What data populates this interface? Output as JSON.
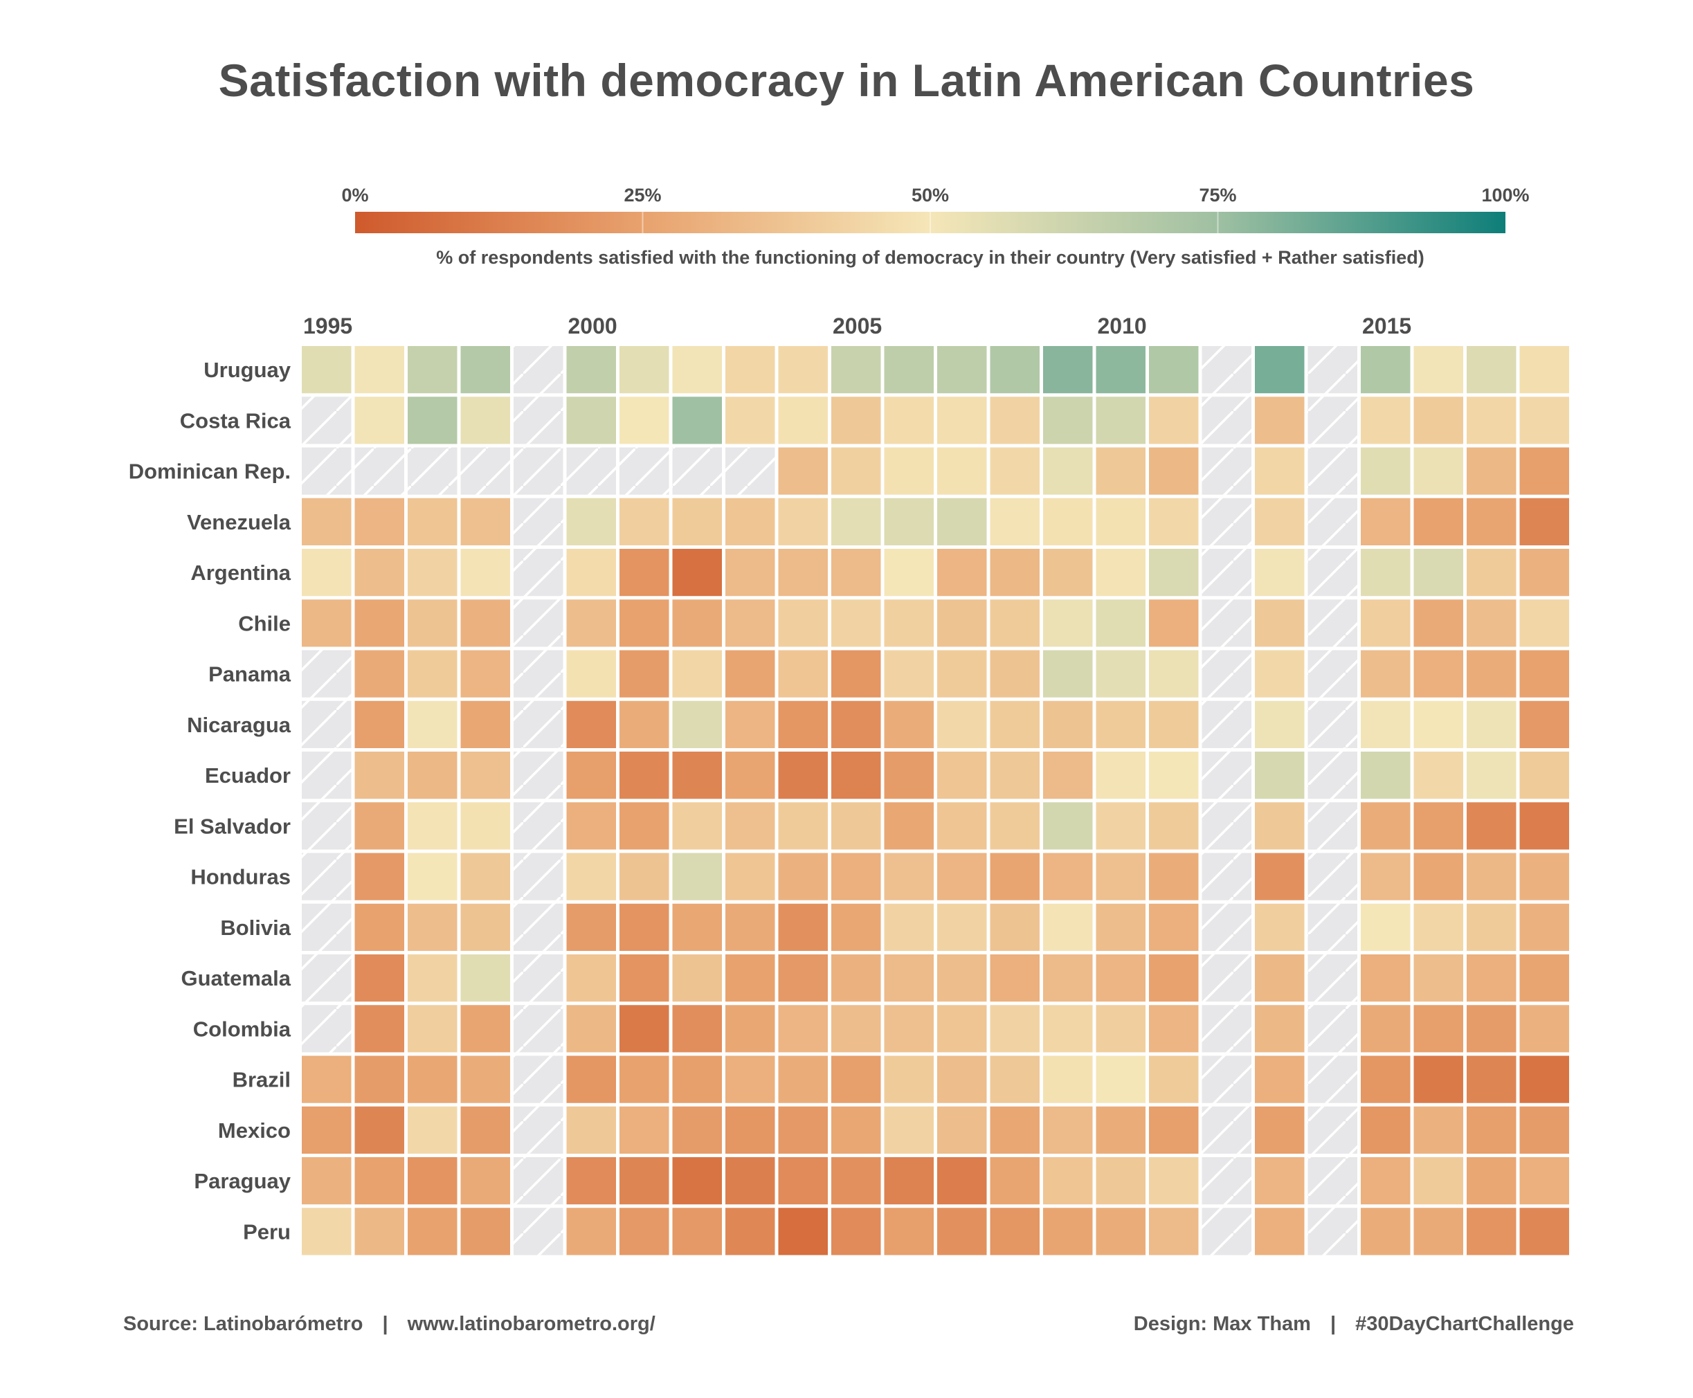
{
  "title": "Satisfaction with democracy in Latin American Countries",
  "colors": {
    "scale": [
      "#cf5a2c",
      "#e8a26e",
      "#f5e6b8",
      "#9fc0a2",
      "#0e7e79"
    ],
    "missing_fill": "#e7e7e9",
    "missing_hatch": "#ffffff",
    "text": "#4d4d4d"
  },
  "footer": {
    "source": "Source: Latinobarómetro",
    "url": "www.latinobarometro.org/",
    "design": "Design: Max Tham",
    "hashtag": "#30DayChartChallenge",
    "separator": "|"
  },
  "chart_data": {
    "type": "heatmap",
    "title": "Satisfaction with democracy in Latin American Countries",
    "legend": {
      "caption": "% of respondents satisfied with the functioning of democracy in their country (Very satisfied + Rather satisfied)",
      "ticks": [
        "0%",
        "25%",
        "50%",
        "75%",
        "100%"
      ],
      "range": [
        0,
        100
      ],
      "placement": "top"
    },
    "x_tick_labels": [
      "1995",
      "2000",
      "2005",
      "2010",
      "2015"
    ],
    "x": [
      1995,
      1996,
      1997,
      1998,
      1999,
      2000,
      2001,
      2002,
      2003,
      2004,
      2005,
      2006,
      2007,
      2008,
      2009,
      2010,
      2011,
      2012,
      2013,
      2014,
      2015,
      2016,
      2017,
      2018
    ],
    "rows": [
      {
        "name": "Uruguay",
        "values": [
          56,
          51,
          64,
          69,
          null,
          65,
          55,
          51,
          44,
          45,
          63,
          66,
          66,
          70,
          79,
          78,
          70,
          null,
          82,
          null,
          70,
          51,
          57,
          47
        ]
      },
      {
        "name": "Costa Rica",
        "values": [
          null,
          51,
          69,
          54,
          null,
          61,
          50,
          75,
          45,
          48,
          39,
          46,
          47,
          43,
          62,
          60,
          43,
          null,
          35,
          null,
          45,
          40,
          44,
          45
        ]
      },
      {
        "name": "Dominican Rep.",
        "values": [
          null,
          null,
          null,
          null,
          null,
          null,
          null,
          null,
          null,
          35,
          42,
          48,
          48,
          45,
          54,
          39,
          33,
          null,
          44,
          null,
          56,
          53,
          33,
          24
        ]
      },
      {
        "name": "Venezuela",
        "values": [
          35,
          32,
          38,
          36,
          null,
          55,
          41,
          40,
          38,
          43,
          55,
          57,
          59,
          49,
          48,
          48,
          45,
          null,
          43,
          null,
          32,
          25,
          26,
          15
        ]
      },
      {
        "name": "Argentina",
        "values": [
          49,
          35,
          43,
          49,
          null,
          46,
          20,
          8,
          34,
          34,
          34,
          50,
          32,
          33,
          37,
          49,
          58,
          null,
          51,
          null,
          56,
          58,
          40,
          31
        ]
      },
      {
        "name": "Chile",
        "values": [
          33,
          27,
          37,
          31,
          null,
          35,
          25,
          28,
          34,
          41,
          43,
          42,
          37,
          40,
          53,
          56,
          30,
          null,
          39,
          null,
          41,
          28,
          35,
          44
        ]
      },
      {
        "name": "Panama",
        "values": [
          null,
          28,
          40,
          32,
          null,
          48,
          23,
          44,
          26,
          38,
          21,
          43,
          40,
          37,
          59,
          55,
          53,
          null,
          45,
          null,
          35,
          30,
          29,
          25
        ]
      },
      {
        "name": "Nicaragua",
        "values": [
          null,
          24,
          51,
          27,
          null,
          17,
          29,
          57,
          32,
          21,
          18,
          29,
          45,
          40,
          37,
          40,
          40,
          null,
          52,
          null,
          51,
          50,
          52,
          22
        ]
      },
      {
        "name": "Ecuador",
        "values": [
          null,
          35,
          33,
          36,
          null,
          24,
          16,
          15,
          26,
          13,
          14,
          23,
          38,
          39,
          34,
          49,
          50,
          null,
          59,
          null,
          60,
          45,
          52,
          40
        ]
      },
      {
        "name": "El Salvador",
        "values": [
          null,
          28,
          49,
          48,
          null,
          30,
          25,
          41,
          36,
          40,
          39,
          27,
          38,
          40,
          60,
          43,
          40,
          null,
          39,
          null,
          29,
          24,
          16,
          12
        ]
      },
      {
        "name": "Honduras",
        "values": [
          null,
          22,
          50,
          39,
          null,
          44,
          37,
          58,
          38,
          31,
          30,
          36,
          32,
          26,
          32,
          36,
          29,
          null,
          19,
          null,
          34,
          27,
          33,
          31
        ]
      },
      {
        "name": "Bolivia",
        "values": [
          null,
          25,
          35,
          37,
          null,
          23,
          20,
          27,
          28,
          19,
          27,
          43,
          43,
          37,
          49,
          35,
          30,
          null,
          41,
          null,
          50,
          44,
          40,
          31
        ]
      },
      {
        "name": "Guatemala",
        "values": [
          null,
          17,
          43,
          56,
          null,
          38,
          20,
          37,
          25,
          22,
          31,
          34,
          35,
          30,
          34,
          32,
          25,
          null,
          33,
          null,
          30,
          35,
          30,
          26
        ]
      },
      {
        "name": "Colombia",
        "values": [
          null,
          18,
          41,
          26,
          null,
          33,
          11,
          18,
          27,
          32,
          35,
          36,
          38,
          43,
          44,
          41,
          32,
          null,
          33,
          null,
          28,
          24,
          23,
          31
        ]
      },
      {
        "name": "Brazil",
        "values": [
          30,
          23,
          27,
          29,
          null,
          21,
          25,
          24,
          30,
          29,
          24,
          40,
          35,
          39,
          48,
          50,
          40,
          null,
          30,
          null,
          21,
          11,
          15,
          9
        ]
      },
      {
        "name": "Mexico",
        "values": [
          24,
          15,
          45,
          23,
          null,
          39,
          30,
          23,
          21,
          22,
          27,
          43,
          35,
          27,
          34,
          29,
          24,
          null,
          24,
          null,
          21,
          31,
          24,
          23
        ]
      },
      {
        "name": "Paraguay",
        "values": [
          31,
          25,
          20,
          28,
          null,
          17,
          15,
          9,
          13,
          17,
          19,
          14,
          12,
          26,
          38,
          39,
          43,
          null,
          32,
          null,
          30,
          40,
          27,
          30
        ]
      },
      {
        "name": "Peru",
        "values": [
          45,
          33,
          25,
          23,
          null,
          28,
          22,
          22,
          16,
          7,
          17,
          24,
          19,
          21,
          26,
          29,
          34,
          null,
          30,
          null,
          29,
          28,
          20,
          16
        ]
      }
    ]
  }
}
